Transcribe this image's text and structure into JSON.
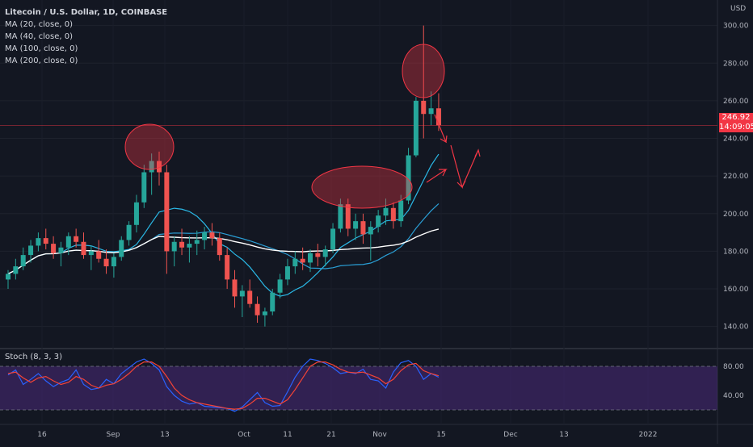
{
  "header": {
    "title": "Litecoin / U.S. Dollar, 1D, COINBASE",
    "indicators": [
      "MA (20, close, 0)",
      "MA (40, close, 0)",
      "MA (100, close, 0)",
      "MA (200, close, 0)"
    ]
  },
  "price_axis": {
    "unit": "USD",
    "last_price": "246.92",
    "countdown": "14:09:05"
  },
  "stoch": {
    "label": "Stoch (8, 3, 3)",
    "upper": "80.00",
    "lower": "40.00"
  },
  "colors": {
    "bg": "#131722",
    "up": "#26a69a",
    "down": "#ef5350",
    "ma20": "#2ab8e6",
    "ma100": "#2a9fd6",
    "ma200": "#ffffff",
    "annot": "#f23645",
    "stoch_k": "#2962ff",
    "stoch_d": "#f44336",
    "stoch_band": "#4a2a7a"
  },
  "chart_data": {
    "type": "candlestick",
    "ylim": [
      130,
      305
    ],
    "yticks": [
      140,
      160,
      180,
      200,
      220,
      240,
      260,
      280,
      300
    ],
    "ytick_labels": [
      "140.00",
      "160.00",
      "180.00",
      "200.00",
      "220.00",
      "240.00",
      "260.00",
      "280.00",
      "300.00"
    ],
    "xtick_labels": [
      "16",
      "Sep",
      "13",
      "Oct",
      "11",
      "21",
      "Nov",
      "15",
      "Dec",
      "13",
      "2022"
    ],
    "ohlc": [
      [
        165,
        170,
        160,
        168
      ],
      [
        168,
        176,
        165,
        172
      ],
      [
        172,
        182,
        170,
        178
      ],
      [
        178,
        186,
        174,
        183
      ],
      [
        183,
        190,
        180,
        187
      ],
      [
        187,
        192,
        181,
        184
      ],
      [
        184,
        188,
        176,
        179
      ],
      [
        179,
        185,
        172,
        182
      ],
      [
        182,
        190,
        178,
        188
      ],
      [
        188,
        192,
        182,
        185
      ],
      [
        185,
        190,
        176,
        178
      ],
      [
        178,
        183,
        170,
        180
      ],
      [
        180,
        186,
        174,
        176
      ],
      [
        176,
        181,
        168,
        172
      ],
      [
        172,
        179,
        166,
        177
      ],
      [
        177,
        188,
        175,
        186
      ],
      [
        186,
        196,
        183,
        194
      ],
      [
        194,
        210,
        190,
        206
      ],
      [
        206,
        226,
        203,
        222
      ],
      [
        222,
        232,
        210,
        228
      ],
      [
        228,
        233,
        215,
        222
      ],
      [
        222,
        226,
        168,
        180
      ],
      [
        180,
        188,
        172,
        185
      ],
      [
        185,
        192,
        178,
        182
      ],
      [
        182,
        188,
        174,
        184
      ],
      [
        184,
        191,
        178,
        186
      ],
      [
        186,
        193,
        181,
        190
      ],
      [
        190,
        195,
        183,
        187
      ],
      [
        187,
        190,
        175,
        178
      ],
      [
        178,
        182,
        160,
        165
      ],
      [
        165,
        170,
        150,
        156
      ],
      [
        156,
        162,
        145,
        159
      ],
      [
        159,
        165,
        150,
        152
      ],
      [
        152,
        156,
        142,
        146
      ],
      [
        146,
        150,
        140,
        148
      ],
      [
        148,
        160,
        146,
        158
      ],
      [
        158,
        168,
        155,
        165
      ],
      [
        165,
        176,
        162,
        172
      ],
      [
        172,
        180,
        168,
        176
      ],
      [
        176,
        182,
        170,
        174
      ],
      [
        174,
        181,
        169,
        179
      ],
      [
        179,
        184,
        172,
        177
      ],
      [
        177,
        183,
        172,
        181
      ],
      [
        181,
        195,
        179,
        192
      ],
      [
        192,
        208,
        190,
        205
      ],
      [
        205,
        208,
        188,
        192
      ],
      [
        192,
        200,
        186,
        196
      ],
      [
        196,
        200,
        184,
        189
      ],
      [
        189,
        196,
        175,
        193
      ],
      [
        193,
        202,
        190,
        199
      ],
      [
        199,
        208,
        194,
        203
      ],
      [
        203,
        206,
        192,
        196
      ],
      [
        196,
        210,
        193,
        207
      ],
      [
        207,
        235,
        205,
        231
      ],
      [
        231,
        262,
        230,
        260
      ],
      [
        260,
        300,
        240,
        253
      ],
      [
        253,
        265,
        247,
        256
      ],
      [
        256,
        264,
        244,
        247
      ]
    ],
    "stoch_k": [
      68,
      75,
      55,
      62,
      70,
      60,
      52,
      58,
      62,
      75,
      55,
      48,
      50,
      62,
      56,
      70,
      78,
      86,
      90,
      84,
      75,
      52,
      40,
      32,
      28,
      30,
      25,
      24,
      23,
      22,
      18,
      24,
      34,
      44,
      30,
      25,
      26,
      45,
      65,
      80,
      90,
      88,
      84,
      78,
      70,
      72,
      70,
      76,
      62,
      60,
      50,
      72,
      85,
      88,
      80,
      62,
      70,
      65
    ],
    "stoch_d": [
      70,
      72,
      64,
      58,
      64,
      66,
      60,
      55,
      58,
      66,
      62,
      54,
      50,
      54,
      56,
      62,
      70,
      80,
      86,
      86,
      80,
      66,
      50,
      40,
      34,
      30,
      28,
      26,
      24,
      22,
      21,
      22,
      28,
      36,
      36,
      32,
      28,
      34,
      48,
      64,
      80,
      86,
      86,
      82,
      76,
      72,
      71,
      72,
      68,
      64,
      56,
      62,
      74,
      82,
      84,
      74,
      70,
      67
    ]
  }
}
